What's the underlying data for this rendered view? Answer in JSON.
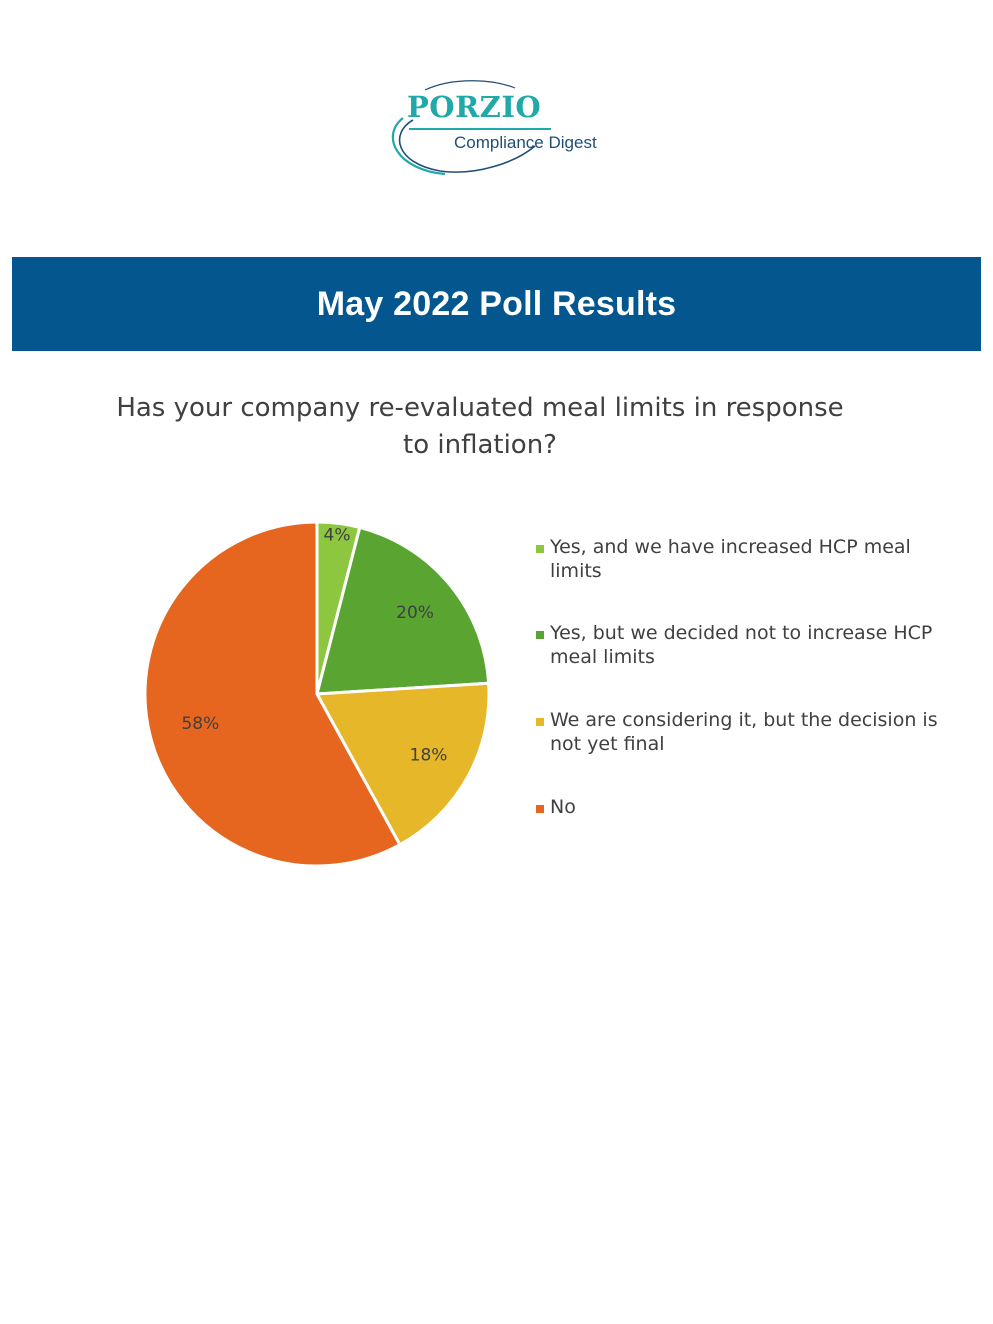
{
  "logo": {
    "name": "PORZIO",
    "subtitle": "Compliance Digest"
  },
  "banner": {
    "title": "May 2022 Poll Results"
  },
  "colors": {
    "banner": "#03578e",
    "logo_teal": "#20a9a8",
    "logo_navy": "#1f4e79"
  },
  "chart_data": {
    "type": "pie",
    "title": "Has your company re-evaluated meal limits in response to inflation?",
    "categories": [
      "Yes, and we have increased HCP meal limits",
      "Yes, but we decided not to increase HCP meal limits",
      "We are considering it, but the decision is not yet final",
      "No"
    ],
    "values": [
      4,
      20,
      18,
      58
    ],
    "labels": [
      "4%",
      "20%",
      "18%",
      "58%"
    ],
    "colors": [
      "#8dc63f",
      "#5aa532",
      "#e5b729",
      "#e6661f"
    ],
    "legend_position": "right"
  }
}
